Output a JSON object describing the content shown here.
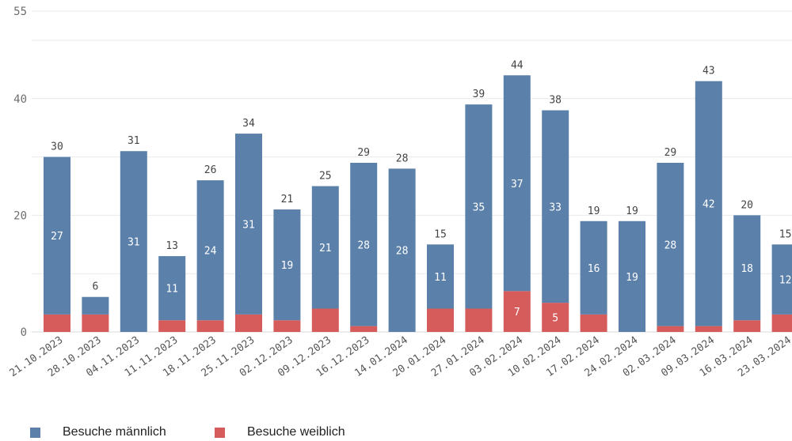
{
  "chart_data": {
    "type": "bar",
    "stacked": true,
    "categories": [
      "21.10.2023",
      "28.10.2023",
      "04.11.2023",
      "11.11.2023",
      "18.11.2023",
      "25.11.2023",
      "02.12.2023",
      "09.12.2023",
      "16.12.2023",
      "14.01.2024",
      "20.01.2024",
      "27.01.2024",
      "03.02.2024",
      "10.02.2024",
      "17.02.2024",
      "24.02.2024",
      "02.03.2024",
      "09.03.2024",
      "16.03.2024",
      "23.03.2024"
    ],
    "series": [
      {
        "name": "Besuche männlich",
        "color": "#5b80aa",
        "values": [
          27,
          3,
          31,
          11,
          24,
          31,
          19,
          21,
          28,
          28,
          11,
          35,
          37,
          33,
          16,
          19,
          28,
          42,
          18,
          12
        ]
      },
      {
        "name": "Besuche weiblich",
        "color": "#d65b5b",
        "values": [
          3,
          3,
          0,
          2,
          2,
          3,
          2,
          4,
          1,
          0,
          4,
          4,
          7,
          5,
          3,
          0,
          1,
          1,
          2,
          3
        ]
      }
    ],
    "totals": [
      30,
      6,
      31,
      13,
      26,
      34,
      21,
      25,
      29,
      28,
      15,
      39,
      44,
      38,
      19,
      19,
      29,
      43,
      20,
      15
    ],
    "inner_labels_male": [
      "27",
      "",
      "31",
      "11",
      "24",
      "31",
      "19",
      "21",
      "28",
      "28",
      "11",
      "35",
      "37",
      "33",
      "16",
      "19",
      "28",
      "42",
      "18",
      "12"
    ],
    "inner_labels_female": [
      "",
      "",
      "",
      "",
      "",
      "",
      "",
      "",
      "",
      "",
      "",
      "",
      "7",
      "5",
      "",
      "",
      "",
      "",
      "",
      ""
    ],
    "y_ticks": [
      "0",
      "20",
      "40",
      "55"
    ],
    "ylim": [
      0,
      55
    ],
    "grid": true,
    "legend_position": "bottom-left"
  }
}
